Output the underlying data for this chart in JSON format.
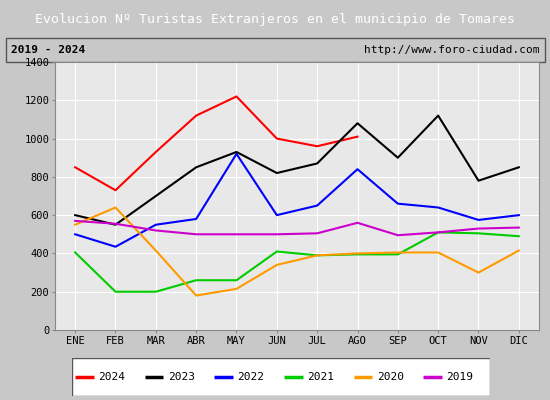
{
  "title": "Evolucion Nº Turistas Extranjeros en el municipio de Tomares",
  "subtitle_left": "2019 - 2024",
  "subtitle_right": "http://www.foro-ciudad.com",
  "months": [
    "ENE",
    "FEB",
    "MAR",
    "ABR",
    "MAY",
    "JUN",
    "JUL",
    "AGO",
    "SEP",
    "OCT",
    "NOV",
    "DIC"
  ],
  "series": {
    "2024": [
      850,
      730,
      930,
      1120,
      1220,
      1000,
      960,
      1010,
      null,
      null,
      null,
      null
    ],
    "2023": [
      600,
      550,
      700,
      850,
      930,
      820,
      870,
      1080,
      900,
      1120,
      780,
      850
    ],
    "2022": [
      500,
      435,
      550,
      580,
      920,
      600,
      650,
      840,
      660,
      640,
      575,
      600
    ],
    "2021": [
      405,
      200,
      200,
      260,
      260,
      410,
      390,
      395,
      395,
      510,
      505,
      490
    ],
    "2020": [
      550,
      640,
      415,
      180,
      215,
      340,
      390,
      400,
      405,
      405,
      300,
      415
    ],
    "2019": [
      570,
      555,
      520,
      500,
      500,
      500,
      505,
      560,
      495,
      510,
      530,
      535
    ]
  },
  "colors": {
    "2024": "#ff0000",
    "2023": "#000000",
    "2022": "#0000ff",
    "2021": "#00cc00",
    "2020": "#ff9900",
    "2019": "#cc00cc"
  },
  "ylim": [
    0,
    1400
  ],
  "yticks": [
    0,
    200,
    400,
    600,
    800,
    1000,
    1200,
    1400
  ],
  "title_bg_color": "#4a8fd4",
  "title_text_color": "#ffffff",
  "plot_bg_color": "#e8e8e8",
  "subtitle_bg_color": "#d0d0d0",
  "outer_bg_color": "#c8c8c8",
  "grid_color": "#ffffff",
  "legend_years": [
    "2024",
    "2023",
    "2022",
    "2021",
    "2020",
    "2019"
  ]
}
